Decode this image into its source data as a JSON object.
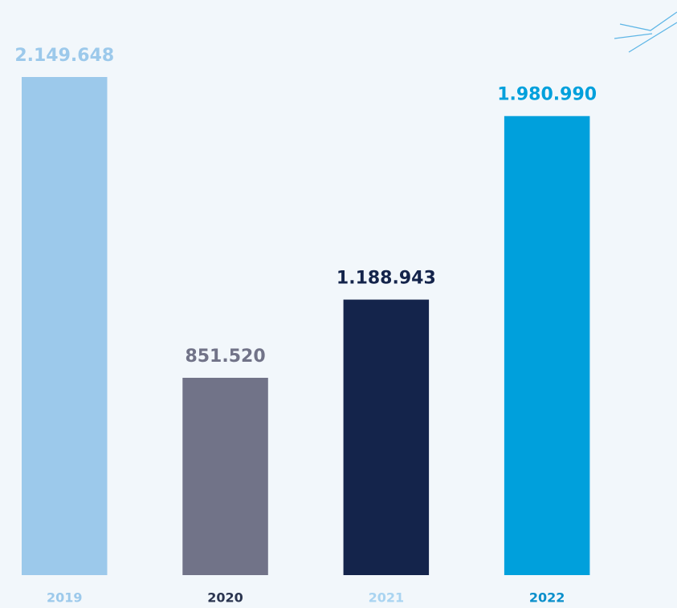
{
  "chart_data": {
    "type": "bar",
    "categories": [
      "2019",
      "2020",
      "2021",
      "2022"
    ],
    "values": [
      2149648,
      851520,
      1188943,
      1980990
    ],
    "value_labels": [
      "2.149.648",
      "851.520",
      "1.188.943",
      "1.980.990"
    ],
    "colors": [
      "#9cc9eb",
      "#717388",
      "#14244b",
      "#00a0dc"
    ],
    "category_label_colors": [
      "#9cc9eb",
      "#2b3550",
      "#a9d4f1",
      "#0a8fcb"
    ]
  }
}
